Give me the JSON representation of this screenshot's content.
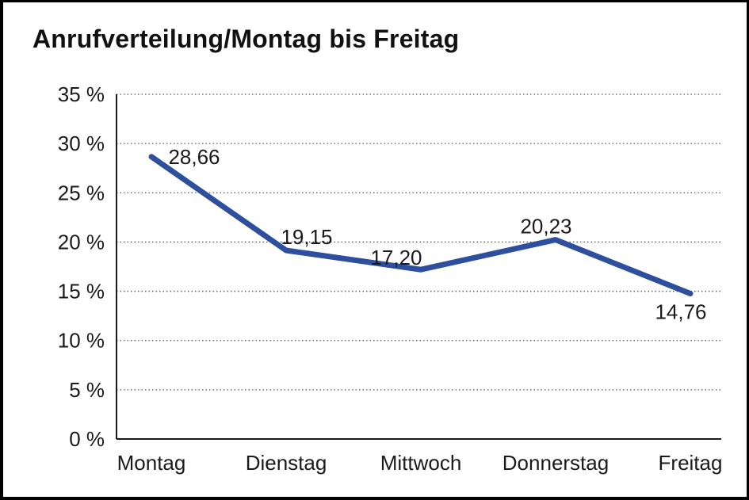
{
  "title": "Anrufverteilung/Montag bis Freitag",
  "chart_data": {
    "type": "line",
    "title": "Anrufverteilung/Montag bis Freitag",
    "categories": [
      "Montag",
      "Dienstag",
      "Mittwoch",
      "Donnerstag",
      "Freitag"
    ],
    "values": [
      28.66,
      19.15,
      17.2,
      20.23,
      14.76
    ],
    "value_labels": [
      "28,66",
      "19,15",
      "17,20",
      "20,23",
      "14,76"
    ],
    "xlabel": "",
    "ylabel": "",
    "ylim": [
      0,
      35
    ],
    "yticks": [
      0,
      5,
      10,
      15,
      20,
      25,
      30,
      35
    ],
    "ytick_labels": [
      "0 %",
      "5 %",
      "10 %",
      "15 %",
      "20 %",
      "25 %",
      "30 %",
      "35 %"
    ],
    "grid": "horizontal-dotted",
    "legend": "none",
    "colors": {
      "line": "#2E4F9D",
      "axis": "#1a1a1a",
      "grid": "#555555",
      "text": "#1a1a1a"
    }
  }
}
